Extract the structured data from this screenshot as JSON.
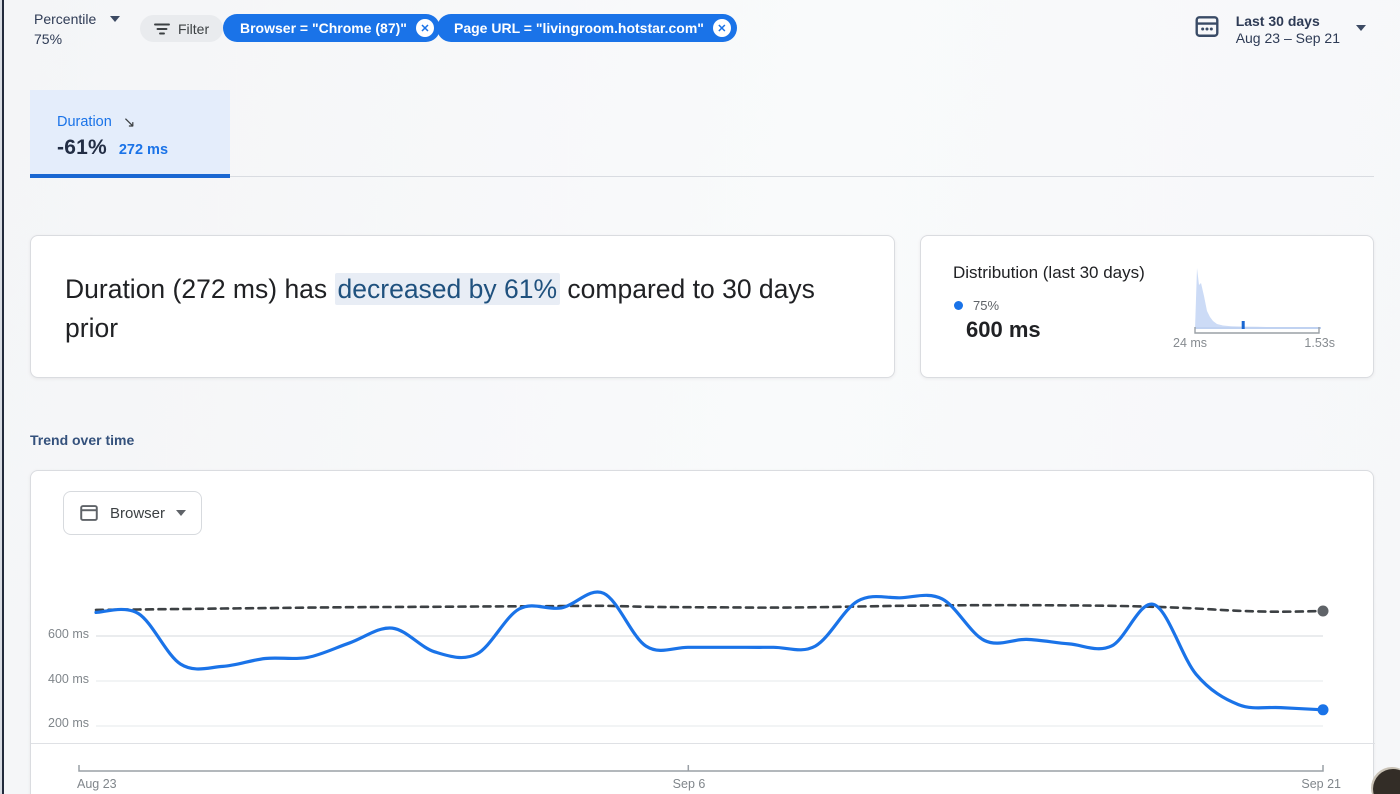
{
  "toolbar": {
    "percentile_label": "Percentile",
    "percentile_value": "75%",
    "filter_label": "Filter",
    "chips": [
      "Browser = \"Chrome (87)\"",
      "Page URL = \"livingroom.hotstar.com\""
    ],
    "date_picker": {
      "title": "Last 30 days",
      "range": "Aug 23 – Sep 21"
    }
  },
  "metric_tab": {
    "name": "Duration",
    "delta": "-61%",
    "value": "272 ms"
  },
  "summary_card": {
    "text_before": "Duration (272 ms) has ",
    "highlight": "decreased by 61%",
    "text_after": " compared to 30 days prior"
  },
  "distribution_card": {
    "title": "Distribution (last 30 days)",
    "percentile": "75%",
    "value": "600 ms"
  },
  "trend_section": {
    "title": "Trend over time",
    "breakdown_label": "Browser"
  },
  "colors": {
    "accent_blue": "#1a73e8",
    "tab_underline": "#1967d2",
    "previous_period_line": "#3c4043",
    "histogram_fill": "#ccdbf6",
    "highlight_bg": "#e8edf5"
  },
  "chart_data": [
    {
      "id": "trend_over_time",
      "type": "line",
      "title": "Trend over time",
      "unit": "ms",
      "x_tick_labels": [
        "Aug 23",
        "Sep 6",
        "Sep 21"
      ],
      "x_tick_days": [
        0,
        14,
        29
      ],
      "y_ticks": [
        {
          "value": 600,
          "label": "600 ms"
        },
        {
          "value": 400,
          "label": "400 ms"
        },
        {
          "value": 200,
          "label": "200 ms"
        }
      ],
      "ylim": [
        0,
        900
      ],
      "grid": "horizontal",
      "legend_position": "none",
      "series": [
        {
          "name": "current_period",
          "color": "#1a73e8",
          "dot_color": "#1a73e8",
          "style": "solid",
          "end_dot": true,
          "values": [
            705,
            700,
            475,
            465,
            500,
            505,
            570,
            635,
            530,
            520,
            720,
            725,
            790,
            555,
            550,
            550,
            550,
            555,
            755,
            770,
            765,
            580,
            585,
            565,
            555,
            740,
            430,
            295,
            282,
            272
          ]
        },
        {
          "name": "previous_period",
          "color": "#3c4043",
          "dot_color": "#5f6368",
          "style": "dashed",
          "end_dot": true,
          "values": [
            716,
            718,
            720,
            722,
            724,
            726,
            728,
            729,
            730,
            731,
            732,
            733,
            734,
            730,
            728,
            727,
            726,
            728,
            731,
            734,
            736,
            737,
            737,
            736,
            734,
            730,
            722,
            712,
            708,
            711
          ]
        }
      ]
    },
    {
      "id": "duration_distribution",
      "type": "area",
      "title": "Distribution (last 30 days)",
      "x_min_label": "24 ms",
      "x_max_label": "1.53s",
      "x_min_ms": 24,
      "x_max_ms": 1530,
      "marker_value_ms": 600,
      "points": [
        [
          0,
          0
        ],
        [
          1,
          30
        ],
        [
          2,
          61
        ],
        [
          4,
          44
        ],
        [
          6,
          46
        ],
        [
          9,
          33
        ],
        [
          12,
          18
        ],
        [
          15,
          12
        ],
        [
          18,
          8
        ],
        [
          22,
          5
        ],
        [
          28,
          3.5
        ],
        [
          36,
          2.8
        ],
        [
          48,
          2.4
        ],
        [
          62,
          2.2
        ],
        [
          78,
          1.9
        ],
        [
          92,
          1.4
        ],
        [
          104,
          0.8
        ],
        [
          114,
          0.2
        ],
        [
          126,
          0
        ]
      ]
    }
  ]
}
